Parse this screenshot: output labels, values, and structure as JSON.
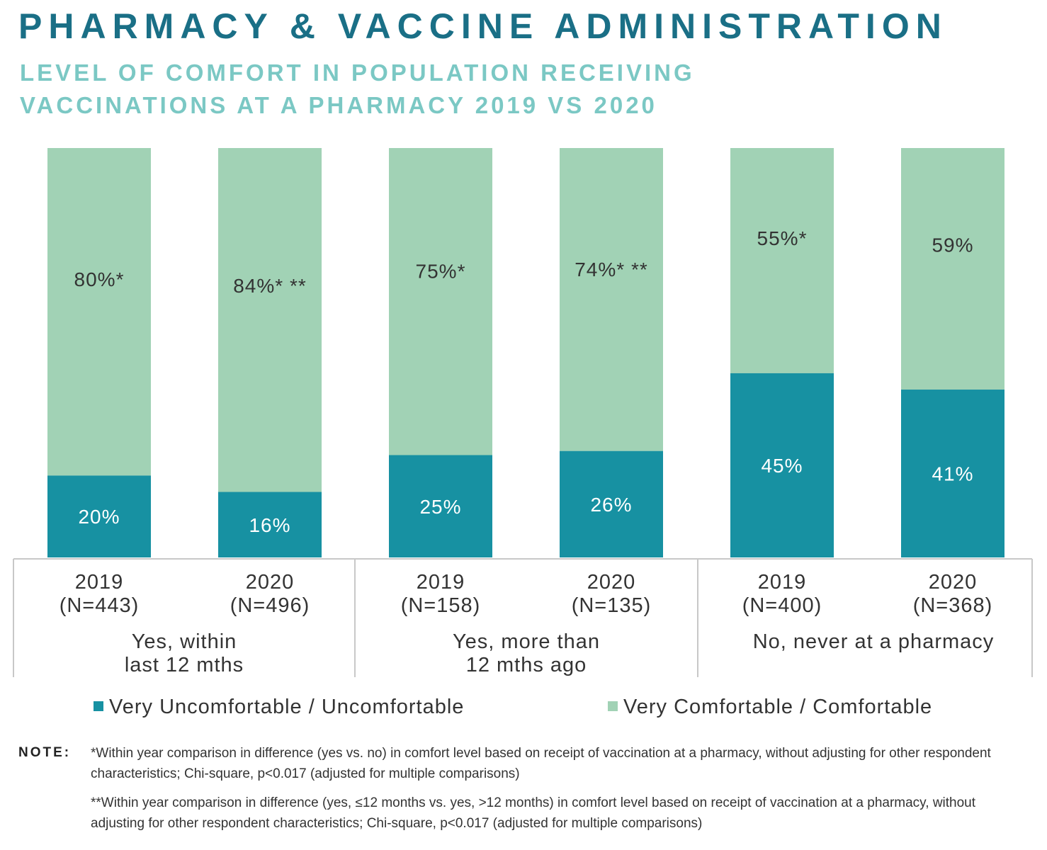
{
  "title": "PHARMACY & VACCINE ADMINISTRATION",
  "subtitle": "LEVEL OF COMFORT IN POPULATION RECEIVING VACCINATIONS AT A PHARMACY 2019 VS 2020",
  "colors": {
    "uncomfortable": "#1791a2",
    "comfortable": "#a1d2b5",
    "title": "#1a6f86",
    "subtitle": "#7bc8c4"
  },
  "chart_data": {
    "type": "bar",
    "stacked": true,
    "title": "LEVEL OF COMFORT IN POPULATION RECEIVING VACCINATIONS AT A PHARMACY 2019 VS 2020",
    "groups": [
      {
        "label": "Yes, within last 12 mths",
        "label_lines": [
          "Yes, within",
          "last 12 mths"
        ]
      },
      {
        "label": "Yes, more than 12 mths ago",
        "label_lines": [
          "Yes, more than",
          "12 mths ago"
        ]
      },
      {
        "label": "No, never at a pharmacy",
        "label_lines": [
          "No, never at a pharmacy"
        ]
      }
    ],
    "categories": [
      "2019 (N=443)",
      "2020 (N=496)",
      "2019 (N=158)",
      "2020 (N=135)",
      "2019 (N=400)",
      "2020 (N=368)"
    ],
    "years": [
      "2019",
      "2020",
      "2019",
      "2020",
      "2019",
      "2020"
    ],
    "n_labels": [
      "(N=443)",
      "(N=496)",
      "(N=158)",
      "(N=135)",
      "(N=400)",
      "(N=368)"
    ],
    "series": [
      {
        "name": "Very Uncomfortable / Uncomfortable",
        "values": [
          20,
          16,
          25,
          26,
          45,
          41
        ],
        "labels": [
          "20%",
          "16%",
          "25%",
          "26%",
          "45%",
          "41%"
        ]
      },
      {
        "name": "Very Comfortable / Comfortable",
        "values": [
          80,
          84,
          75,
          74,
          55,
          59
        ],
        "labels": [
          "80%*",
          "84%* **",
          "75%*",
          "74%* **",
          "55%*",
          "59%"
        ]
      }
    ],
    "ylim": [
      0,
      100
    ],
    "xlabel": "",
    "ylabel": ""
  },
  "legend": {
    "uncomfortable": "Very Uncomfortable / Uncomfortable",
    "comfortable": "Very Comfortable / Comfortable"
  },
  "note": {
    "label": "NOTE:",
    "line1": "*Within year comparison in difference (yes vs. no) in comfort level based on receipt of vaccination at a pharmacy, without adjusting for other respondent characteristics; Chi-square, p<0.017 (adjusted for multiple comparisons)",
    "line2": "**Within year comparison in difference (yes, ≤12 months vs. yes, >12 months) in comfort level based on receipt of vaccination at a pharmacy, without adjusting for other respondent characteristics; Chi-square, p<0.017 (adjusted for multiple comparisons)"
  }
}
